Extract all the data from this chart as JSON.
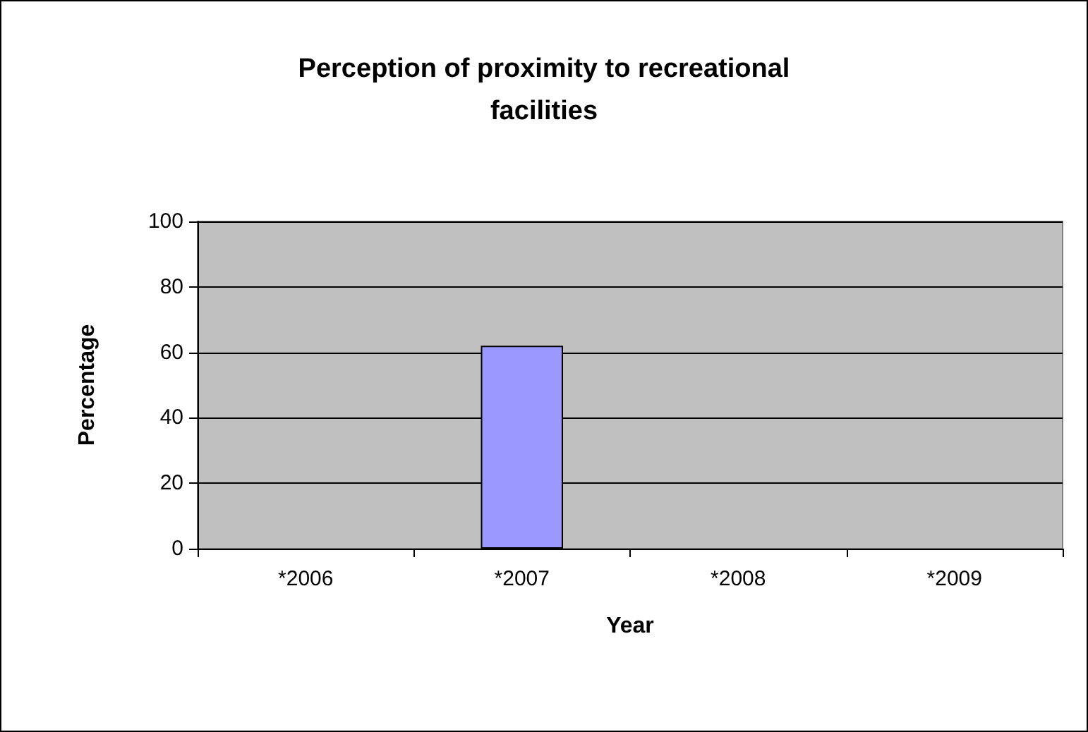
{
  "chart_data": {
    "type": "bar",
    "title": "Perception of proximity to recreational\nfacilities",
    "xlabel": "Year",
    "ylabel": "Percentage",
    "categories": [
      "*2006",
      "*2007",
      "*2008",
      "*2009"
    ],
    "values": [
      null,
      62,
      null,
      null
    ],
    "color": "#9999ff",
    "ylim": [
      0,
      100
    ],
    "yticks": [
      0,
      20,
      40,
      60,
      80,
      100
    ],
    "grid": "y"
  }
}
